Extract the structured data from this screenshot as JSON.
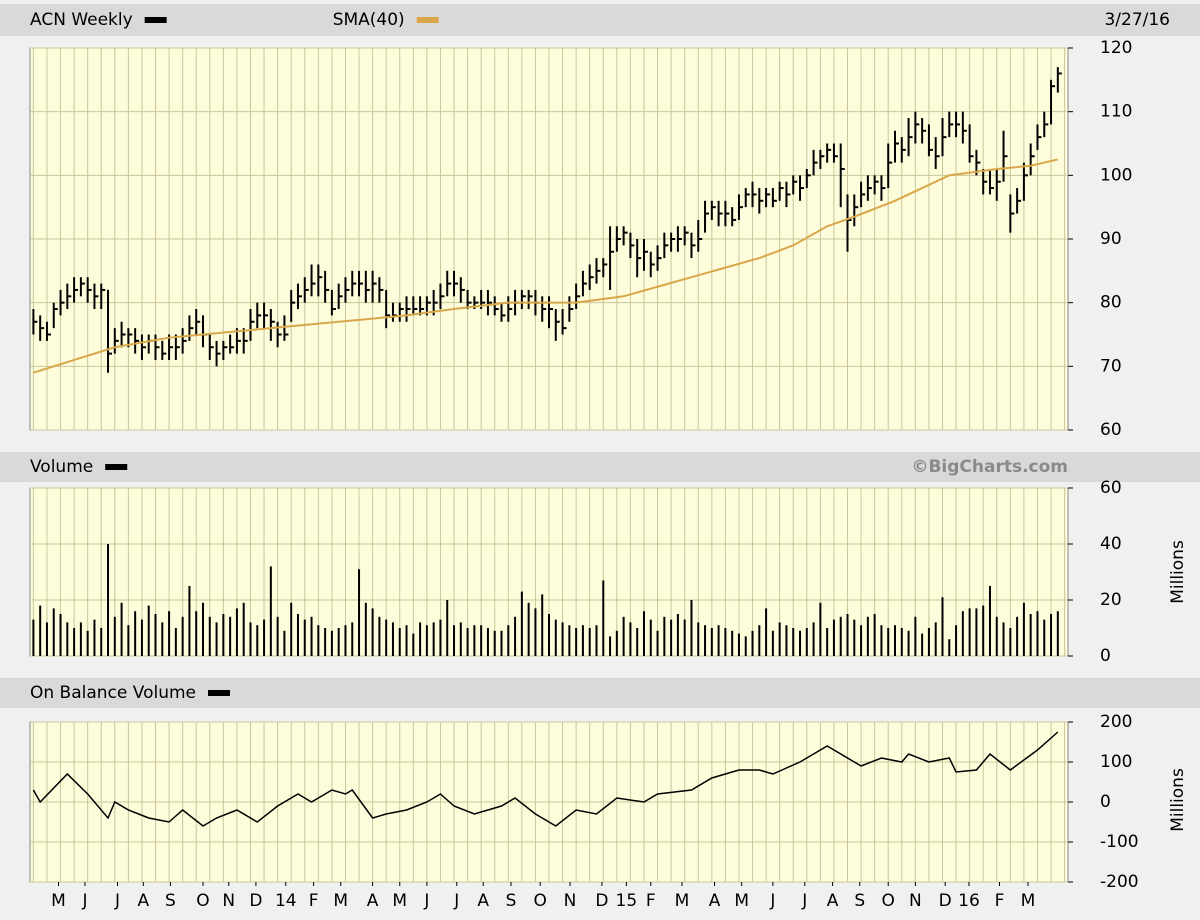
{
  "chart_data": [
    {
      "type": "hlc",
      "date": "3/27/16",
      "xlim": [
        -0.5,
        152.5
      ],
      "ylim": [
        60,
        120
      ],
      "yticks": [
        60,
        70,
        80,
        90,
        100,
        110,
        120
      ],
      "series": [
        {
          "name": "ACN Weekly",
          "color": "#000000",
          "high": [
            79,
            78,
            77,
            80,
            82,
            83,
            84,
            84,
            84,
            83,
            83,
            82,
            76,
            77,
            76,
            76,
            75,
            75,
            75,
            74,
            75,
            75,
            76,
            78,
            79,
            78,
            75,
            74,
            74,
            75,
            76,
            76,
            79,
            80,
            80,
            79,
            77,
            78,
            82,
            83,
            84,
            86,
            86,
            85,
            82,
            83,
            84,
            85,
            85,
            85,
            85,
            84,
            82,
            80,
            80,
            81,
            81,
            81,
            81,
            82,
            83,
            85,
            85,
            84,
            82,
            81,
            82,
            82,
            81,
            80,
            81,
            82,
            82,
            82,
            82,
            81,
            81,
            79,
            79,
            81,
            83,
            85,
            86,
            87,
            87,
            92,
            92,
            92,
            91,
            90,
            90,
            88,
            89,
            91,
            91,
            92,
            92,
            91,
            93,
            96,
            96,
            96,
            96,
            95,
            97,
            98,
            99,
            98,
            98,
            98,
            99,
            99,
            100,
            100,
            101,
            104,
            104,
            105,
            105,
            105,
            97,
            97,
            99,
            100,
            100,
            100,
            105,
            107,
            106,
            109,
            110,
            109,
            108,
            106,
            109,
            110,
            110,
            110,
            108,
            104,
            101,
            101,
            101,
            107,
            97,
            98,
            102,
            105,
            108,
            110,
            115,
            117
          ],
          "low": [
            75,
            74,
            74,
            76,
            78,
            79,
            80,
            81,
            80,
            79,
            79,
            69,
            72,
            73,
            73,
            72,
            71,
            72,
            71,
            71,
            71,
            71,
            72,
            74,
            75,
            73,
            71,
            70,
            71,
            72,
            72,
            72,
            74,
            76,
            76,
            74,
            73,
            74,
            77,
            79,
            80,
            81,
            81,
            80,
            78,
            79,
            80,
            81,
            81,
            80,
            80,
            80,
            76,
            77,
            77,
            77,
            78,
            78,
            78,
            78,
            79,
            81,
            81,
            80,
            79,
            79,
            79,
            78,
            78,
            77,
            77,
            78,
            79,
            79,
            78,
            77,
            76,
            74,
            75,
            77,
            79,
            81,
            82,
            83,
            84,
            82,
            88,
            89,
            87,
            84,
            85,
            84,
            85,
            87,
            88,
            88,
            89,
            87,
            88,
            91,
            93,
            92,
            92,
            92,
            93,
            95,
            95,
            94,
            95,
            95,
            96,
            95,
            97,
            96,
            98,
            100,
            101,
            102,
            102,
            95,
            88,
            92,
            95,
            96,
            97,
            96,
            98,
            102,
            102,
            103,
            105,
            105,
            103,
            101,
            103,
            106,
            106,
            105,
            102,
            100,
            97,
            97,
            96,
            99,
            91,
            94,
            96,
            100,
            104,
            106,
            108,
            113
          ],
          "close": [
            77,
            76,
            75,
            79,
            80,
            81,
            82,
            83,
            82,
            81,
            82,
            72,
            74,
            75,
            75,
            74,
            73,
            74,
            73,
            72,
            73,
            73,
            74,
            76,
            77,
            75,
            73,
            72,
            73,
            73,
            74,
            74,
            77,
            78,
            78,
            77,
            75,
            75,
            80,
            81,
            82,
            83,
            84,
            82,
            79,
            81,
            82,
            83,
            83,
            82,
            83,
            82,
            78,
            78,
            79,
            79,
            79,
            79,
            80,
            80,
            81,
            83,
            83,
            82,
            80,
            80,
            80,
            80,
            79,
            78,
            79,
            80,
            81,
            81,
            80,
            79,
            79,
            77,
            76,
            79,
            81,
            83,
            84,
            85,
            86,
            88,
            90,
            91,
            89,
            87,
            88,
            86,
            87,
            89,
            90,
            90,
            91,
            89,
            90,
            94,
            95,
            94,
            94,
            93,
            95,
            97,
            97,
            96,
            97,
            96,
            98,
            97,
            99,
            98,
            100,
            102,
            103,
            104,
            103,
            101,
            93,
            95,
            97,
            98,
            99,
            98,
            102,
            105,
            104,
            106,
            108,
            107,
            104,
            103,
            106,
            108,
            108,
            107,
            103,
            102,
            99,
            98,
            99,
            103,
            94,
            96,
            100,
            103,
            106,
            108,
            114,
            116
          ]
        },
        {
          "name": "SMA(40)",
          "color": "#d9a74a",
          "x": [
            0,
            6,
            12,
            20,
            25,
            35,
            45,
            50,
            55,
            62,
            70,
            80,
            87,
            92,
            97,
            102,
            107,
            112,
            117,
            121,
            127,
            131,
            135,
            142,
            147,
            151
          ],
          "values": [
            69,
            71,
            73,
            74.5,
            75,
            76,
            77,
            77.5,
            78,
            79,
            80,
            80,
            81,
            82.5,
            84,
            85.5,
            87,
            89,
            92,
            93.5,
            96,
            98,
            100,
            101,
            101.5,
            102.5
          ]
        }
      ]
    },
    {
      "type": "bar",
      "source": "©BigCharts.com",
      "ylabel": "Millions",
      "ylim": [
        0,
        60
      ],
      "yticks": [
        0,
        20,
        40,
        60
      ],
      "series": [
        {
          "name": "Volume",
          "color": "#000000",
          "values": [
            13,
            18,
            12,
            17,
            15,
            12,
            10,
            12,
            9,
            13,
            10,
            40,
            14,
            19,
            11,
            16,
            13,
            18,
            15,
            12,
            16,
            10,
            14,
            25,
            16,
            19,
            14,
            12,
            15,
            14,
            17,
            19,
            12,
            11,
            13,
            32,
            14,
            9,
            19,
            15,
            13,
            14,
            11,
            10,
            9,
            10,
            11,
            12,
            31,
            19,
            17,
            14,
            13,
            12,
            10,
            11,
            8,
            12,
            11,
            12,
            13,
            20,
            11,
            12,
            10,
            11,
            11,
            10,
            9,
            9,
            11,
            14,
            23,
            19,
            17,
            22,
            15,
            13,
            12,
            11,
            10,
            11,
            10,
            11,
            27,
            7,
            9,
            14,
            12,
            10,
            16,
            13,
            9,
            14,
            13,
            15,
            13,
            20,
            12,
            11,
            10,
            11,
            10,
            9,
            8,
            7,
            9,
            11,
            17,
            9,
            12,
            11,
            10,
            9,
            10,
            12,
            19,
            10,
            13,
            14,
            15,
            13,
            11,
            14,
            15,
            11,
            10,
            11,
            10,
            9,
            14,
            8,
            10,
            12,
            21,
            6,
            11,
            16,
            17,
            17,
            18,
            25,
            14,
            12,
            10,
            14,
            19,
            15,
            16,
            13,
            15,
            16
          ]
        }
      ]
    },
    {
      "type": "line",
      "ylabel": "Millions",
      "ylim": [
        -200,
        200
      ],
      "yticks": [
        -200,
        -100,
        0,
        100,
        200
      ],
      "xticks": [
        {
          "value": 3.7,
          "label": "M"
        },
        {
          "value": 7.6,
          "label": "J"
        },
        {
          "value": 12.4,
          "label": "J"
        },
        {
          "value": 16.2,
          "label": "A"
        },
        {
          "value": 20.2,
          "label": "S"
        },
        {
          "value": 25,
          "label": "O"
        },
        {
          "value": 28.8,
          "label": "N"
        },
        {
          "value": 32.8,
          "label": "D"
        },
        {
          "value": 37.2,
          "label": "14"
        },
        {
          "value": 41.3,
          "label": "F"
        },
        {
          "value": 45.3,
          "label": "M"
        },
        {
          "value": 50,
          "label": "A"
        },
        {
          "value": 54,
          "label": "M"
        },
        {
          "value": 58,
          "label": "J"
        },
        {
          "value": 62.4,
          "label": "J"
        },
        {
          "value": 66.3,
          "label": "A"
        },
        {
          "value": 70.4,
          "label": "S"
        },
        {
          "value": 74.7,
          "label": "O"
        },
        {
          "value": 79.1,
          "label": "N"
        },
        {
          "value": 83.8,
          "label": "D"
        },
        {
          "value": 87.4,
          "label": "15"
        },
        {
          "value": 91,
          "label": "F"
        },
        {
          "value": 95.6,
          "label": "M"
        },
        {
          "value": 100.4,
          "label": "A"
        },
        {
          "value": 104.4,
          "label": "M"
        },
        {
          "value": 109,
          "label": "J"
        },
        {
          "value": 113.7,
          "label": "J"
        },
        {
          "value": 117.8,
          "label": "A"
        },
        {
          "value": 121.8,
          "label": "S"
        },
        {
          "value": 126,
          "label": "O"
        },
        {
          "value": 130,
          "label": "N"
        },
        {
          "value": 134.4,
          "label": "D"
        },
        {
          "value": 137.9,
          "label": "16"
        },
        {
          "value": 142.4,
          "label": "F"
        },
        {
          "value": 146.6,
          "label": "M"
        }
      ],
      "series": [
        {
          "name": "On Balance Volume",
          "color": "#000000",
          "x": [
            0,
            1,
            5,
            8,
            11,
            12,
            14,
            17,
            20,
            22,
            25,
            27,
            30,
            33,
            36,
            39,
            41,
            44,
            46,
            47,
            50,
            52,
            55,
            58,
            60,
            62,
            65,
            69,
            71,
            74,
            77,
            80,
            83,
            86,
            90,
            92,
            97,
            100,
            104,
            107,
            109,
            113,
            117,
            122,
            125,
            128,
            129,
            132,
            135,
            136,
            139,
            141,
            144,
            148,
            151
          ],
          "values": [
            30,
            0,
            70,
            20,
            -40,
            0,
            -20,
            -40,
            -50,
            -20,
            -60,
            -40,
            -20,
            -50,
            -10,
            20,
            0,
            30,
            20,
            30,
            -40,
            -30,
            -20,
            0,
            20,
            -10,
            -30,
            -10,
            10,
            -30,
            -60,
            -20,
            -30,
            10,
            0,
            20,
            30,
            60,
            80,
            80,
            70,
            100,
            140,
            90,
            110,
            100,
            120,
            100,
            110,
            75,
            80,
            120,
            80,
            130,
            175
          ]
        }
      ]
    }
  ]
}
